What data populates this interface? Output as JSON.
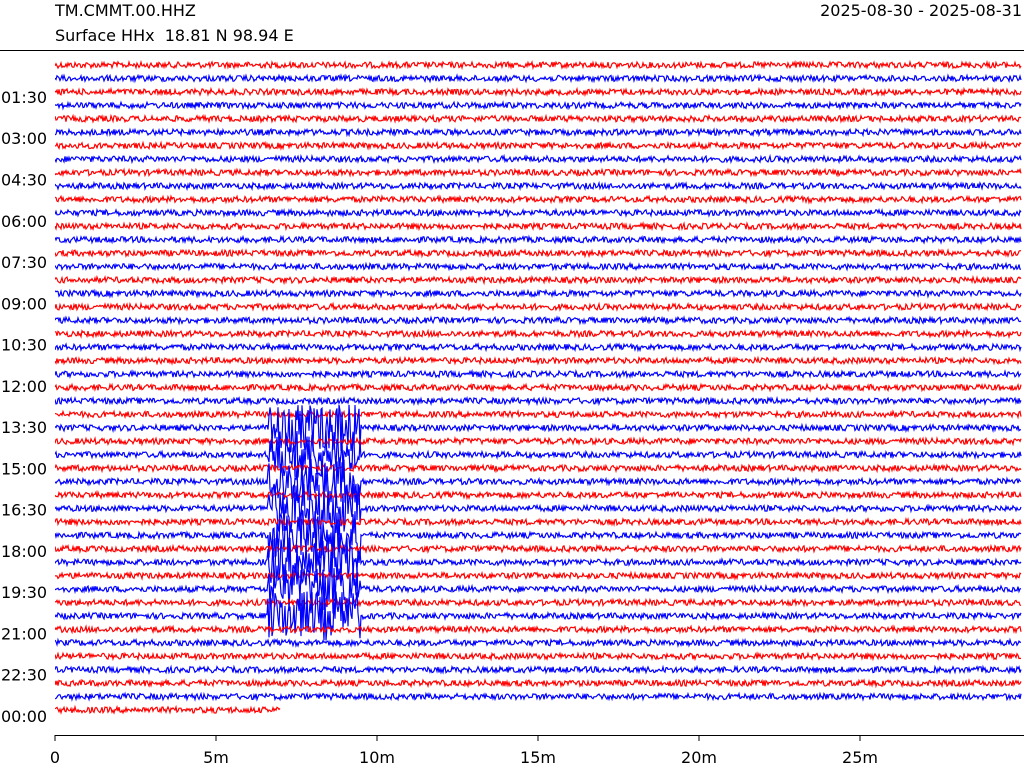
{
  "chart_data": {
    "type": "helicorder",
    "title": "TM.CMMT.00.HHZ",
    "subtitle": "Surface HHx  18.81 N 98.94 E",
    "date_range": "2025-08-30 - 2025-08-31",
    "colors": [
      "#ff0000",
      "#0000ff"
    ],
    "xlim": [
      0,
      30
    ],
    "xticks": [
      0,
      {
        "value": 5,
        "label": "5m"
      },
      {
        "value": 10,
        "label": "10m"
      },
      {
        "value": 15,
        "label": "15m"
      },
      {
        "value": 20,
        "label": "20m"
      },
      {
        "value": 25,
        "label": "25m"
      }
    ],
    "ylim": [
      0,
      24
    ],
    "yticks": [
      {
        "value": 1.5,
        "label": "01:30"
      },
      {
        "value": 3,
        "label": "03:00"
      },
      {
        "value": 4.5,
        "label": "04:30"
      },
      {
        "value": 6,
        "label": "06:00"
      },
      {
        "value": 7.5,
        "label": "07:30"
      },
      {
        "value": 9,
        "label": "09:00"
      },
      {
        "value": 10.5,
        "label": "10:30"
      },
      {
        "value": 12,
        "label": "12:00"
      },
      {
        "value": 13.5,
        "label": "13:30"
      },
      {
        "value": 15,
        "label": "15:00"
      },
      {
        "value": 16.5,
        "label": "16:30"
      },
      {
        "value": 18,
        "label": "18:00"
      },
      {
        "value": 19.5,
        "label": "19:30"
      },
      {
        "value": 21,
        "label": "21:00"
      },
      {
        "value": 22.5,
        "label": "22:30"
      },
      {
        "value": 24,
        "label": "00:00"
      }
    ]
  }
}
